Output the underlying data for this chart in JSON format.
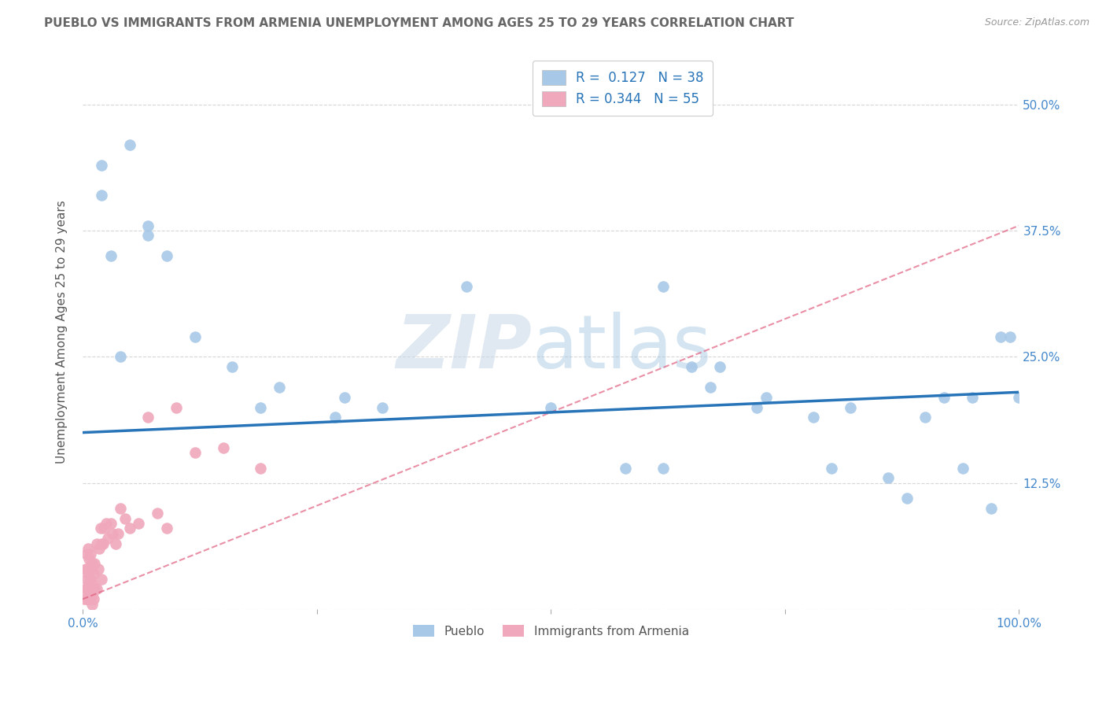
{
  "title": "PUEBLO VS IMMIGRANTS FROM ARMENIA UNEMPLOYMENT AMONG AGES 25 TO 29 YEARS CORRELATION CHART",
  "source_text": "Source: ZipAtlas.com",
  "ylabel": "Unemployment Among Ages 25 to 29 years",
  "watermark_zip": "ZIP",
  "watermark_atlas": "atlas",
  "xlim": [
    0,
    1.0
  ],
  "ylim": [
    0,
    0.55
  ],
  "xticks": [
    0.0,
    0.25,
    0.5,
    0.75,
    1.0
  ],
  "xticklabels": [
    "0.0%",
    "",
    "",
    "",
    "100.0%"
  ],
  "yticks": [
    0.0,
    0.125,
    0.25,
    0.375,
    0.5
  ],
  "yticklabels": [
    "",
    "12.5%",
    "25.0%",
    "37.5%",
    "50.0%"
  ],
  "pueblo_color": "#a8c8e8",
  "armenia_color": "#f0a8bc",
  "pueblo_line_color": "#2874b8",
  "armenia_line_color": "#e06080",
  "legend_text_color": "#2874b8",
  "title_color": "#666666",
  "axis_tick_color": "#4488cc",
  "grid_color": "#cccccc",
  "background_color": "#ffffff",
  "pueblo_scatter_x": [
    0.02,
    0.02,
    0.03,
    0.04,
    0.05,
    0.07,
    0.07,
    0.09,
    0.12,
    0.16,
    0.19,
    0.21,
    0.27,
    0.28,
    0.32,
    0.41,
    0.5,
    0.58,
    0.62,
    0.65,
    0.67,
    0.72,
    0.73,
    0.78,
    0.8,
    0.82,
    0.86,
    0.88,
    0.9,
    0.92,
    0.94,
    0.95,
    0.97,
    0.98,
    0.99,
    1.0,
    0.62,
    0.68
  ],
  "pueblo_scatter_y": [
    0.44,
    0.41,
    0.35,
    0.25,
    0.46,
    0.38,
    0.37,
    0.35,
    0.27,
    0.24,
    0.2,
    0.22,
    0.19,
    0.21,
    0.2,
    0.32,
    0.2,
    0.14,
    0.32,
    0.24,
    0.22,
    0.2,
    0.21,
    0.19,
    0.14,
    0.2,
    0.13,
    0.11,
    0.19,
    0.21,
    0.14,
    0.21,
    0.1,
    0.27,
    0.27,
    0.21,
    0.14,
    0.24
  ],
  "armenia_scatter_x": [
    0.002,
    0.003,
    0.003,
    0.004,
    0.004,
    0.004,
    0.005,
    0.005,
    0.005,
    0.006,
    0.006,
    0.006,
    0.006,
    0.007,
    0.007,
    0.007,
    0.008,
    0.008,
    0.008,
    0.009,
    0.009,
    0.01,
    0.01,
    0.01,
    0.01,
    0.012,
    0.012,
    0.013,
    0.013,
    0.015,
    0.015,
    0.017,
    0.018,
    0.019,
    0.02,
    0.02,
    0.022,
    0.023,
    0.025,
    0.027,
    0.03,
    0.032,
    0.035,
    0.038,
    0.04,
    0.045,
    0.05,
    0.06,
    0.07,
    0.08,
    0.09,
    0.1,
    0.12,
    0.15,
    0.19
  ],
  "armenia_scatter_y": [
    0.01,
    0.02,
    0.04,
    0.01,
    0.03,
    0.055,
    0.01,
    0.02,
    0.04,
    0.01,
    0.02,
    0.035,
    0.06,
    0.01,
    0.025,
    0.05,
    0.01,
    0.03,
    0.055,
    0.02,
    0.04,
    0.005,
    0.015,
    0.025,
    0.045,
    0.01,
    0.035,
    0.02,
    0.045,
    0.02,
    0.065,
    0.04,
    0.06,
    0.08,
    0.03,
    0.065,
    0.065,
    0.08,
    0.085,
    0.07,
    0.085,
    0.075,
    0.065,
    0.075,
    0.1,
    0.09,
    0.08,
    0.085,
    0.19,
    0.095,
    0.08,
    0.2,
    0.155,
    0.16,
    0.14
  ],
  "pueblo_trendline_x": [
    0.0,
    1.0
  ],
  "pueblo_trendline_y": [
    0.175,
    0.215
  ],
  "armenia_trendline_x": [
    0.0,
    1.0
  ],
  "armenia_trendline_y": [
    0.01,
    0.38
  ]
}
